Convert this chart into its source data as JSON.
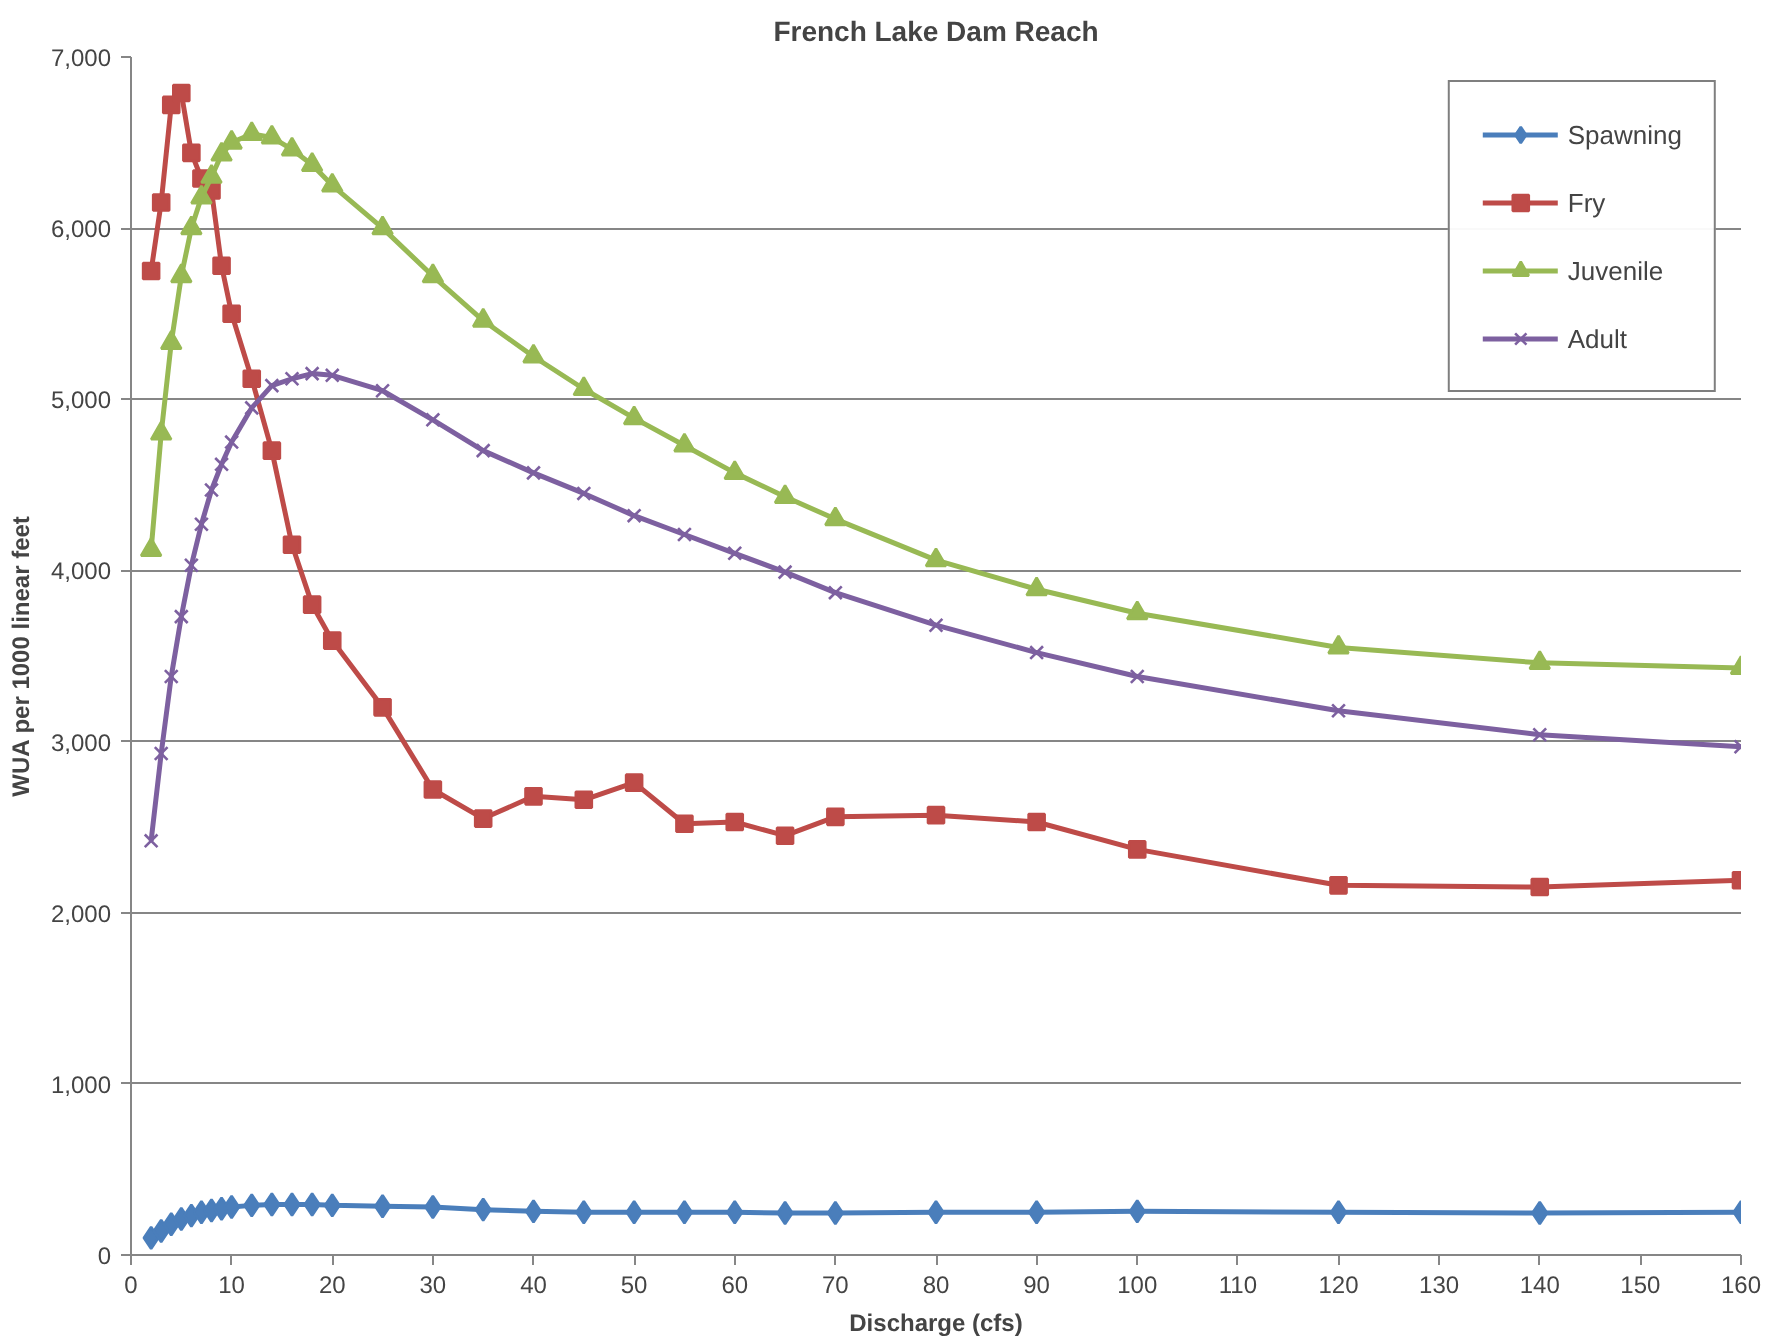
{
  "chart_data": {
    "type": "line",
    "title": "French Lake Dam Reach",
    "xlabel": "Discharge (cfs)",
    "ylabel": "WUA per 1000 linear feet",
    "x": [
      2,
      3,
      4,
      5,
      6,
      7,
      8,
      9,
      10,
      12,
      14,
      16,
      18,
      20,
      25,
      30,
      35,
      40,
      45,
      50,
      55,
      60,
      65,
      70,
      80,
      90,
      100,
      120,
      140,
      160
    ],
    "series": [
      {
        "name": "Spawning",
        "color": "#4a7ebb",
        "marker": "diamond",
        "values": [
          100,
          140,
          180,
          210,
          230,
          250,
          260,
          270,
          280,
          290,
          295,
          295,
          295,
          290,
          285,
          280,
          265,
          255,
          250,
          250,
          250,
          250,
          245,
          245,
          250,
          250,
          255,
          250,
          245,
          250
        ]
      },
      {
        "name": "Fry",
        "color": "#be4b48",
        "marker": "square",
        "values": [
          5750,
          6150,
          6720,
          6790,
          6440,
          6290,
          6220,
          5780,
          5500,
          5120,
          4700,
          4150,
          3800,
          3590,
          3200,
          2720,
          2550,
          2680,
          2660,
          2760,
          2520,
          2530,
          2450,
          2560,
          2570,
          2530,
          2370,
          2160,
          2150,
          2190
        ]
      },
      {
        "name": "Juvenile",
        "color": "#98b954",
        "marker": "triangle",
        "values": [
          4120,
          4800,
          5330,
          5720,
          6000,
          6180,
          6300,
          6430,
          6500,
          6550,
          6530,
          6460,
          6370,
          6250,
          6000,
          5720,
          5460,
          5250,
          5060,
          4890,
          4730,
          4570,
          4430,
          4300,
          4060,
          3890,
          3750,
          3550,
          3460,
          3430
        ]
      },
      {
        "name": "Adult",
        "color": "#7d60a0",
        "marker": "cross",
        "values": [
          2420,
          2930,
          3380,
          3730,
          4030,
          4270,
          4470,
          4620,
          4750,
          4950,
          5080,
          5120,
          5150,
          5140,
          5050,
          4880,
          4700,
          4570,
          4450,
          4320,
          4210,
          4100,
          3990,
          3870,
          3680,
          3520,
          3380,
          3180,
          3040,
          2970
        ]
      }
    ],
    "xlim": [
      0,
      160
    ],
    "xticks": [
      0,
      10,
      20,
      30,
      40,
      50,
      60,
      70,
      80,
      90,
      100,
      110,
      120,
      130,
      140,
      150,
      160
    ],
    "ylim": [
      0,
      7000
    ],
    "yticks": [
      0,
      {
        "value": 1000,
        "label": "1,000"
      },
      {
        "value": 2000,
        "label": "2,000"
      },
      {
        "value": 3000,
        "label": "3,000"
      },
      {
        "value": 4000,
        "label": "4,000"
      },
      {
        "value": 5000,
        "label": "5,000"
      },
      {
        "value": 6000,
        "label": "6,000"
      },
      {
        "value": 7000,
        "label": "7,000"
      }
    ],
    "grid": "y",
    "legend": "top right",
    "line_style": "solid"
  }
}
